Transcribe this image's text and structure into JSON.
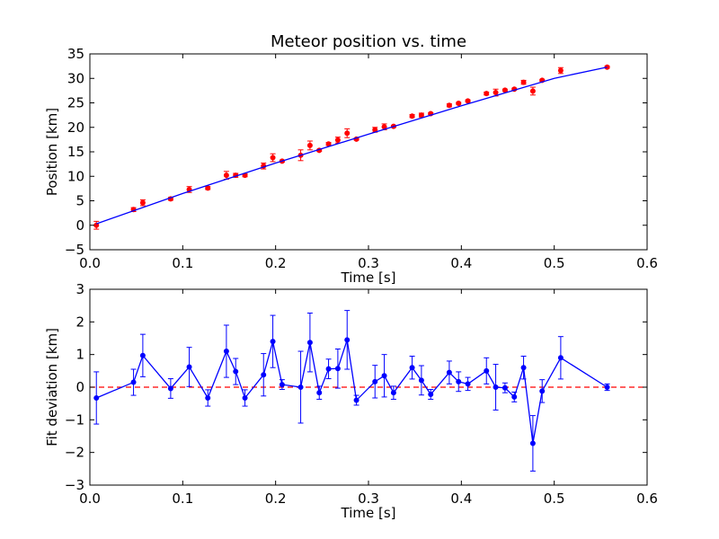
{
  "colors": {
    "data_points": "#ff0000",
    "fit_line": "#0000ff",
    "deviation": "#0000ff",
    "zero_line": "#ff0000",
    "axes": "#000000",
    "background": "#ffffff"
  },
  "chart_data": [
    {
      "type": "scatter",
      "title": "Meteor position vs. time",
      "xlabel": "Time [s]",
      "ylabel": "Position [km]",
      "xlim": [
        0.0,
        0.6
      ],
      "ylim": [
        -5,
        35
      ],
      "xticks": [
        "0.0",
        "0.1",
        "0.2",
        "0.3",
        "0.4",
        "0.5",
        "0.6"
      ],
      "yticks": [
        "−5",
        "0",
        "5",
        "10",
        "15",
        "20",
        "25",
        "30",
        "35"
      ],
      "grid": false,
      "series": [
        {
          "kind": "errorbar-points",
          "x": [
            0.007,
            0.047,
            0.057,
            0.087,
            0.107,
            0.127,
            0.147,
            0.157,
            0.167,
            0.187,
            0.197,
            0.207,
            0.227,
            0.237,
            0.247,
            0.257,
            0.267,
            0.277,
            0.287,
            0.307,
            0.317,
            0.327,
            0.347,
            0.357,
            0.367,
            0.387,
            0.397,
            0.407,
            0.427,
            0.437,
            0.447,
            0.457,
            0.467,
            0.477,
            0.487,
            0.507,
            0.557
          ],
          "y": [
            0.0,
            3.2,
            4.6,
            5.4,
            7.3,
            7.6,
            10.2,
            10.2,
            10.2,
            12.1,
            13.8,
            13.1,
            14.3,
            16.3,
            15.3,
            16.6,
            17.4,
            18.8,
            17.6,
            19.5,
            20.1,
            20.2,
            22.3,
            22.5,
            22.8,
            24.5,
            24.9,
            25.4,
            26.9,
            27.1,
            27.6,
            27.8,
            29.2,
            27.4,
            29.6,
            31.6,
            32.3
          ],
          "err": [
            0.8,
            0.4,
            0.6,
            0.3,
            0.6,
            0.3,
            0.8,
            0.4,
            0.3,
            0.6,
            0.8,
            0.2,
            1.1,
            0.9,
            0.2,
            0.3,
            0.6,
            0.9,
            0.2,
            0.5,
            0.6,
            0.2,
            0.3,
            0.4,
            0.2,
            0.3,
            0.2,
            0.2,
            0.3,
            0.7,
            0.2,
            0.2,
            0.4,
            0.8,
            0.2,
            0.6,
            0.2
          ]
        },
        {
          "kind": "fit-line",
          "x": [
            0.007,
            0.1,
            0.2,
            0.3,
            0.4,
            0.5,
            0.557
          ],
          "y": [
            0.3,
            6.5,
            12.7,
            18.6,
            24.4,
            30.0,
            32.3
          ]
        }
      ]
    },
    {
      "type": "line",
      "xlabel": "Time [s]",
      "ylabel": "Fit deviation [km]",
      "xlim": [
        0.0,
        0.6
      ],
      "ylim": [
        -3,
        3
      ],
      "xticks": [
        "0.0",
        "0.1",
        "0.2",
        "0.3",
        "0.4",
        "0.5",
        "0.6"
      ],
      "yticks": [
        "−3",
        "−2",
        "−1",
        "0",
        "1",
        "2",
        "3"
      ],
      "grid": false,
      "reference_line": 0,
      "series": [
        {
          "kind": "errorbar-line",
          "x": [
            0.007,
            0.047,
            0.057,
            0.087,
            0.107,
            0.127,
            0.147,
            0.157,
            0.167,
            0.187,
            0.197,
            0.207,
            0.227,
            0.237,
            0.247,
            0.257,
            0.267,
            0.277,
            0.287,
            0.307,
            0.317,
            0.327,
            0.347,
            0.357,
            0.367,
            0.387,
            0.397,
            0.407,
            0.427,
            0.437,
            0.447,
            0.457,
            0.467,
            0.477,
            0.487,
            0.507,
            0.557
          ],
          "y": [
            -0.33,
            0.15,
            0.97,
            -0.04,
            0.62,
            -0.33,
            1.1,
            0.48,
            -0.33,
            0.38,
            1.4,
            0.08,
            0.0,
            1.37,
            -0.17,
            0.56,
            0.57,
            1.45,
            -0.4,
            0.17,
            0.35,
            -0.17,
            0.6,
            0.21,
            -0.22,
            0.45,
            0.17,
            0.1,
            0.5,
            0.0,
            -0.02,
            -0.3,
            0.6,
            -1.72,
            -0.12,
            0.9,
            0.0
          ],
          "err": [
            0.8,
            0.4,
            0.65,
            0.3,
            0.6,
            0.25,
            0.8,
            0.4,
            0.25,
            0.65,
            0.8,
            0.15,
            1.1,
            0.9,
            0.2,
            0.3,
            0.6,
            0.9,
            0.15,
            0.5,
            0.65,
            0.2,
            0.35,
            0.45,
            0.15,
            0.35,
            0.3,
            0.2,
            0.4,
            0.7,
            0.15,
            0.15,
            0.35,
            0.85,
            0.35,
            0.65,
            0.1
          ]
        }
      ]
    }
  ]
}
